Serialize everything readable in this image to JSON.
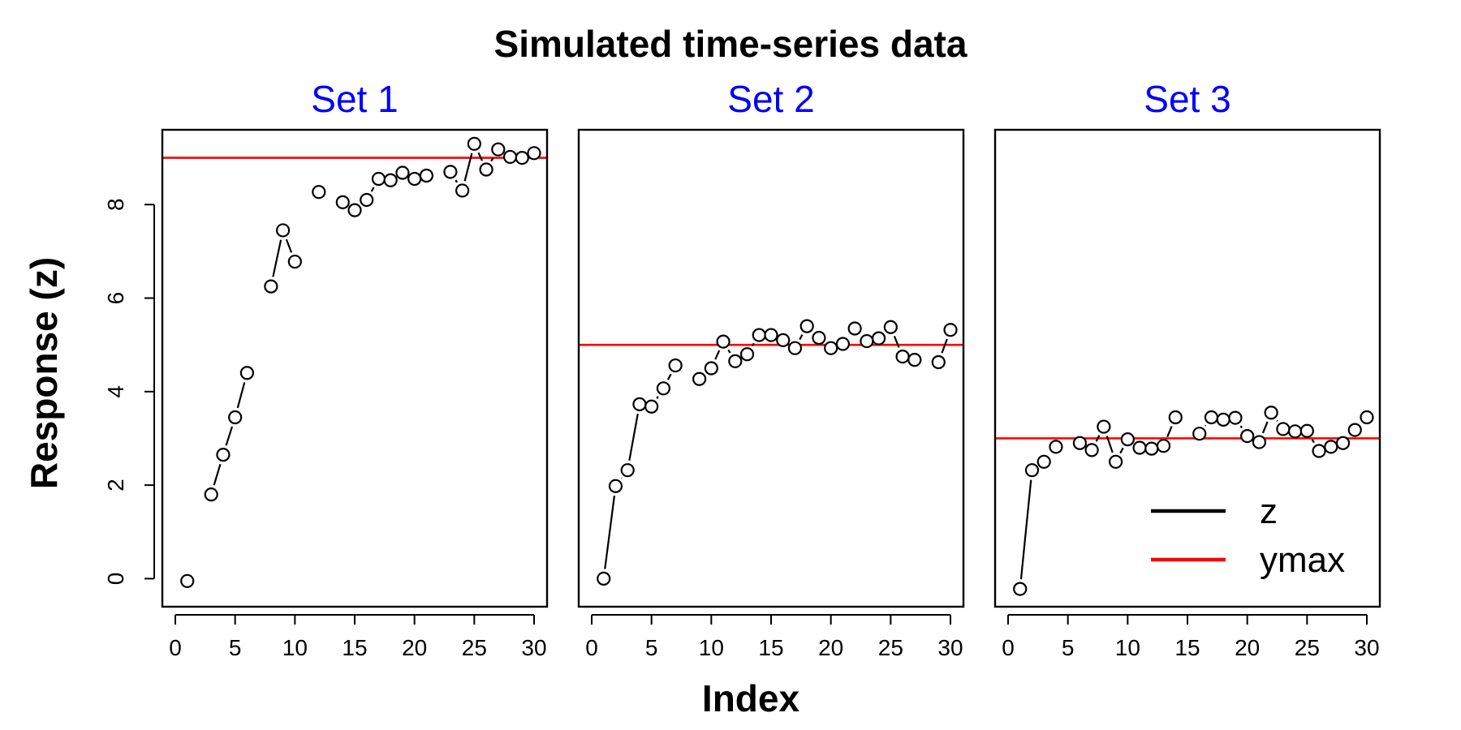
{
  "title": "Simulated time-series data",
  "xlabel": "Index",
  "ylabel": "Response (z)",
  "colors": {
    "panel_title": "#0000ff",
    "line": "#000000",
    "ref": "#ff0000"
  },
  "legend": {
    "position": "bottom-right",
    "items": [
      "z",
      "ymax"
    ]
  },
  "chart_data": [
    {
      "type": "line",
      "title": "Set 1",
      "xlim": [
        0,
        30
      ],
      "ylim": [
        -0.6,
        9.6
      ],
      "xticks": [
        0,
        5,
        10,
        15,
        20,
        25,
        30
      ],
      "yticks": [
        0,
        2,
        4,
        6,
        8
      ],
      "ref_line": 9,
      "x": [
        1,
        3,
        4,
        5,
        6,
        8,
        9,
        10,
        12,
        14,
        15,
        16,
        17,
        18,
        19,
        20,
        21,
        23,
        24,
        25,
        26,
        27,
        28,
        29,
        30
      ],
      "values": [
        -0.05,
        1.8,
        2.65,
        3.45,
        4.4,
        6.25,
        7.45,
        6.78,
        8.27,
        8.05,
        7.88,
        8.1,
        8.55,
        8.52,
        8.68,
        8.55,
        8.62,
        8.7,
        8.3,
        9.3,
        8.75,
        9.18,
        9.02,
        9.0,
        9.1
      ]
    },
    {
      "type": "line",
      "title": "Set 2",
      "xlim": [
        0,
        30
      ],
      "ylim": [
        -0.6,
        9.6
      ],
      "xticks": [
        0,
        5,
        10,
        15,
        20,
        25,
        30
      ],
      "ref_line": 5,
      "x": [
        1,
        2,
        3,
        4,
        5,
        6,
        7,
        9,
        10,
        11,
        12,
        13,
        14,
        15,
        16,
        17,
        18,
        19,
        20,
        21,
        22,
        23,
        24,
        25,
        26,
        27,
        29,
        30
      ],
      "values": [
        0.0,
        1.98,
        2.32,
        3.73,
        3.68,
        4.07,
        4.56,
        4.27,
        4.5,
        5.07,
        4.65,
        4.8,
        5.21,
        5.21,
        5.1,
        4.93,
        5.4,
        5.15,
        4.93,
        5.02,
        5.35,
        5.08,
        5.14,
        5.38,
        4.75,
        4.68,
        4.63,
        5.32
      ]
    },
    {
      "type": "line",
      "title": "Set 3",
      "xlim": [
        0,
        30
      ],
      "ylim": [
        -0.6,
        9.6
      ],
      "xticks": [
        0,
        5,
        10,
        15,
        20,
        25,
        30
      ],
      "ref_line": 3,
      "x": [
        1,
        2,
        3,
        4,
        6,
        7,
        8,
        9,
        10,
        11,
        12,
        13,
        14,
        16,
        17,
        18,
        19,
        20,
        21,
        22,
        23,
        24,
        25,
        26,
        27,
        28,
        29,
        30
      ],
      "values": [
        -0.22,
        2.32,
        2.5,
        2.82,
        2.9,
        2.75,
        3.25,
        2.5,
        2.98,
        2.8,
        2.78,
        2.84,
        3.45,
        3.1,
        3.45,
        3.4,
        3.44,
        3.05,
        2.92,
        3.55,
        3.2,
        3.15,
        3.16,
        2.73,
        2.82,
        2.9,
        3.18,
        3.45
      ]
    }
  ]
}
